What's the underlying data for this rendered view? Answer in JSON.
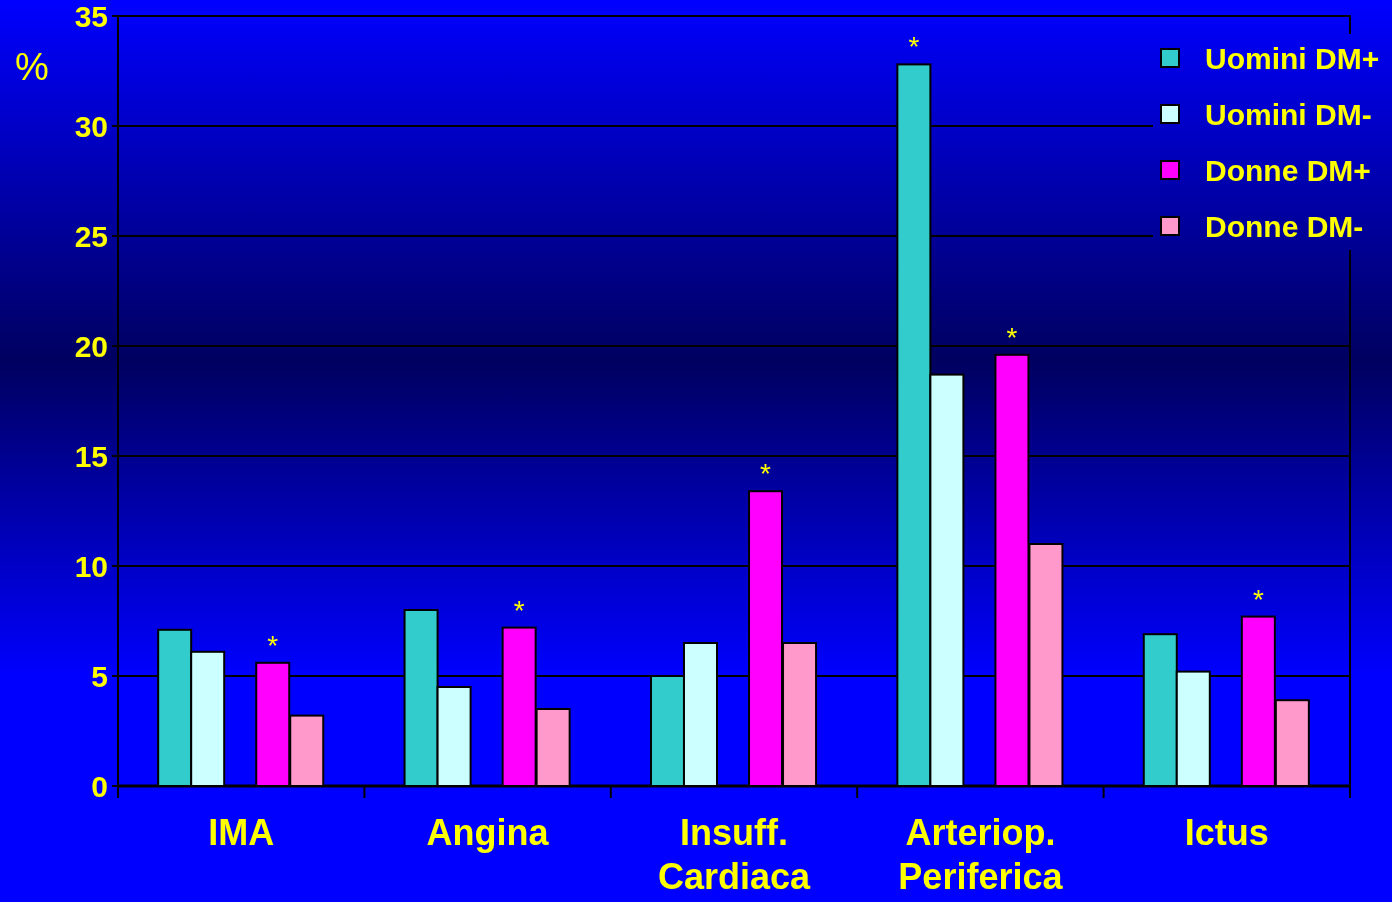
{
  "chart_data": {
    "type": "bar",
    "ylabel": "%",
    "categories": [
      "IMA",
      "Angina",
      "Insuff. Cardiaca",
      "Arteriop. Periferica",
      "Ictus"
    ],
    "series": [
      {
        "name": "Uomini DM+",
        "color": "#33cccc",
        "values": [
          7.1,
          8.0,
          5.0,
          32.8,
          6.9
        ],
        "value_labels": [
          null,
          null,
          null,
          "*",
          null
        ]
      },
      {
        "name": "Uomini DM-",
        "color": "#ccffff",
        "values": [
          6.1,
          4.5,
          6.5,
          18.7,
          5.2
        ]
      },
      {
        "name": "Donne DM+",
        "color": "#ff00ff",
        "values": [
          5.6,
          7.2,
          13.4,
          19.6,
          7.7
        ],
        "value_labels": [
          "*",
          "*",
          "*",
          "*",
          "*"
        ]
      },
      {
        "name": "Donne DM-",
        "color": "#ff99cc",
        "values": [
          3.2,
          3.5,
          6.5,
          11.0,
          3.9
        ]
      }
    ],
    "ylim": [
      0,
      35
    ],
    "yticks": [
      0,
      5,
      10,
      15,
      20,
      25,
      30,
      35
    ],
    "grid": "y",
    "legend": "top right"
  }
}
